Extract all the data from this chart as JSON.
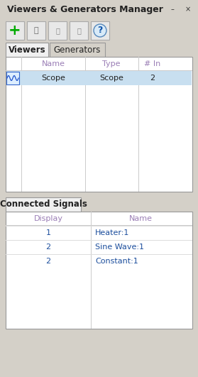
{
  "title": "Viewers & Generators Manager",
  "bg_color": "#d4d0c8",
  "panel_bg": "#f0f0f0",
  "white": "#ffffff",
  "border_color": "#999999",
  "tab_active": "#f0f0f0",
  "tab_inactive": "#d4d0c8",
  "header_text_color": "#9b7fb6",
  "data_text_color": "#1c4e9d",
  "viewers_tab": "Viewers",
  "generators_tab": "Generators",
  "viewers_headers": [
    "Name",
    "Type",
    "# In"
  ],
  "viewers_row": [
    "Scope",
    "Scope",
    "2"
  ],
  "connected_tab": "Connected Signals",
  "connected_headers": [
    "Display",
    "Name"
  ],
  "connected_rows": [
    [
      "1",
      "Heater:1"
    ],
    [
      "2",
      "Sine Wave:1"
    ],
    [
      "2",
      "Constant:1"
    ]
  ],
  "title_fontsize": 9,
  "tab_fontsize": 8.5,
  "cell_fontsize": 8,
  "header_fontsize": 8
}
